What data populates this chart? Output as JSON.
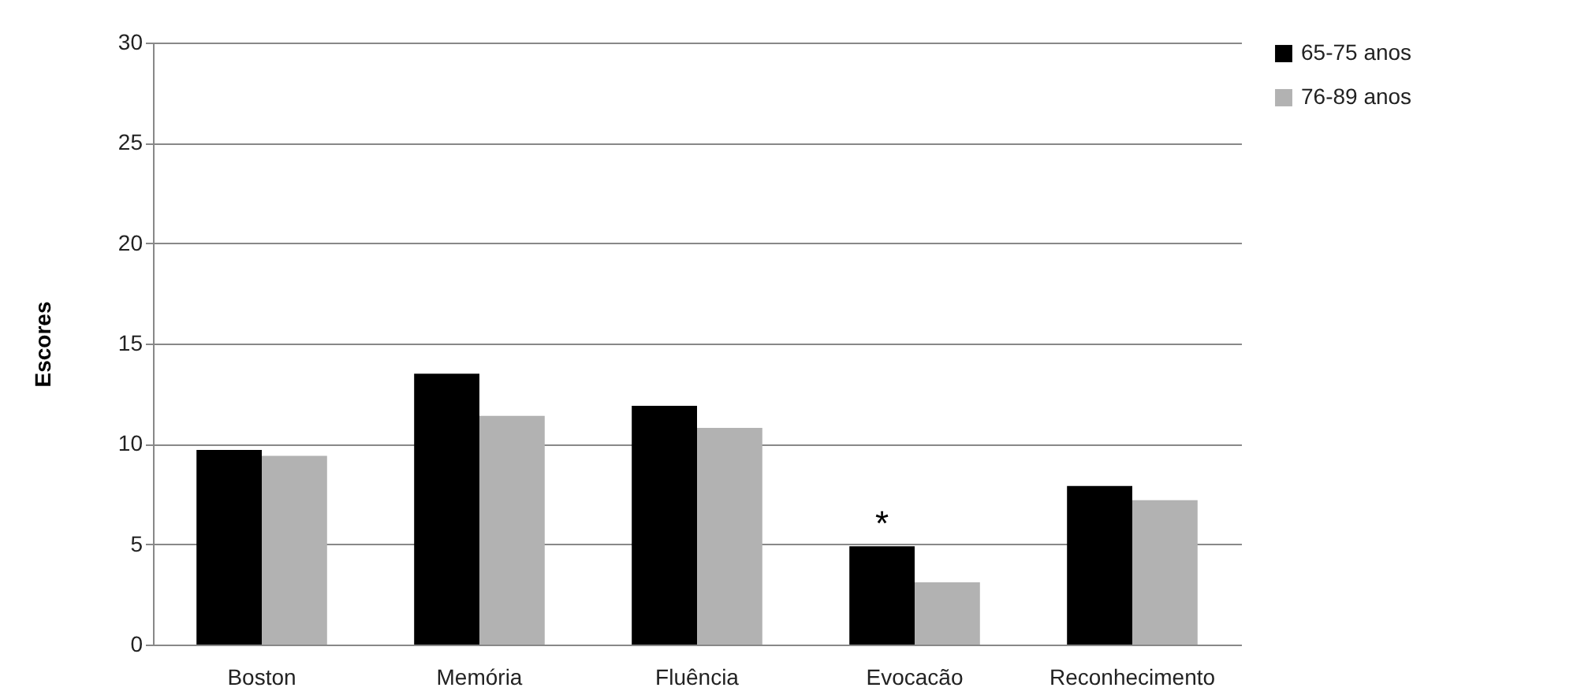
{
  "chart_data": {
    "type": "bar",
    "ylabel": "Escores",
    "categories": [
      "Boston",
      "Memória",
      "Fluência",
      "Evocacão",
      "Reconhecimento"
    ],
    "series": [
      {
        "name": "65-75 anos",
        "color": "#000000",
        "values": [
          9.7,
          13.5,
          11.9,
          4.9,
          7.9
        ]
      },
      {
        "name": "76-89 anos",
        "color": "#b2b2b2",
        "values": [
          9.4,
          11.4,
          10.8,
          3.1,
          7.2
        ]
      }
    ],
    "ylim": [
      0,
      30
    ],
    "yticks": [
      0,
      5,
      10,
      15,
      20,
      25,
      30
    ],
    "grid": "y",
    "legend": "right",
    "annotations": [
      {
        "text": "*",
        "x": "Evocacão",
        "y": 4.9
      }
    ]
  }
}
